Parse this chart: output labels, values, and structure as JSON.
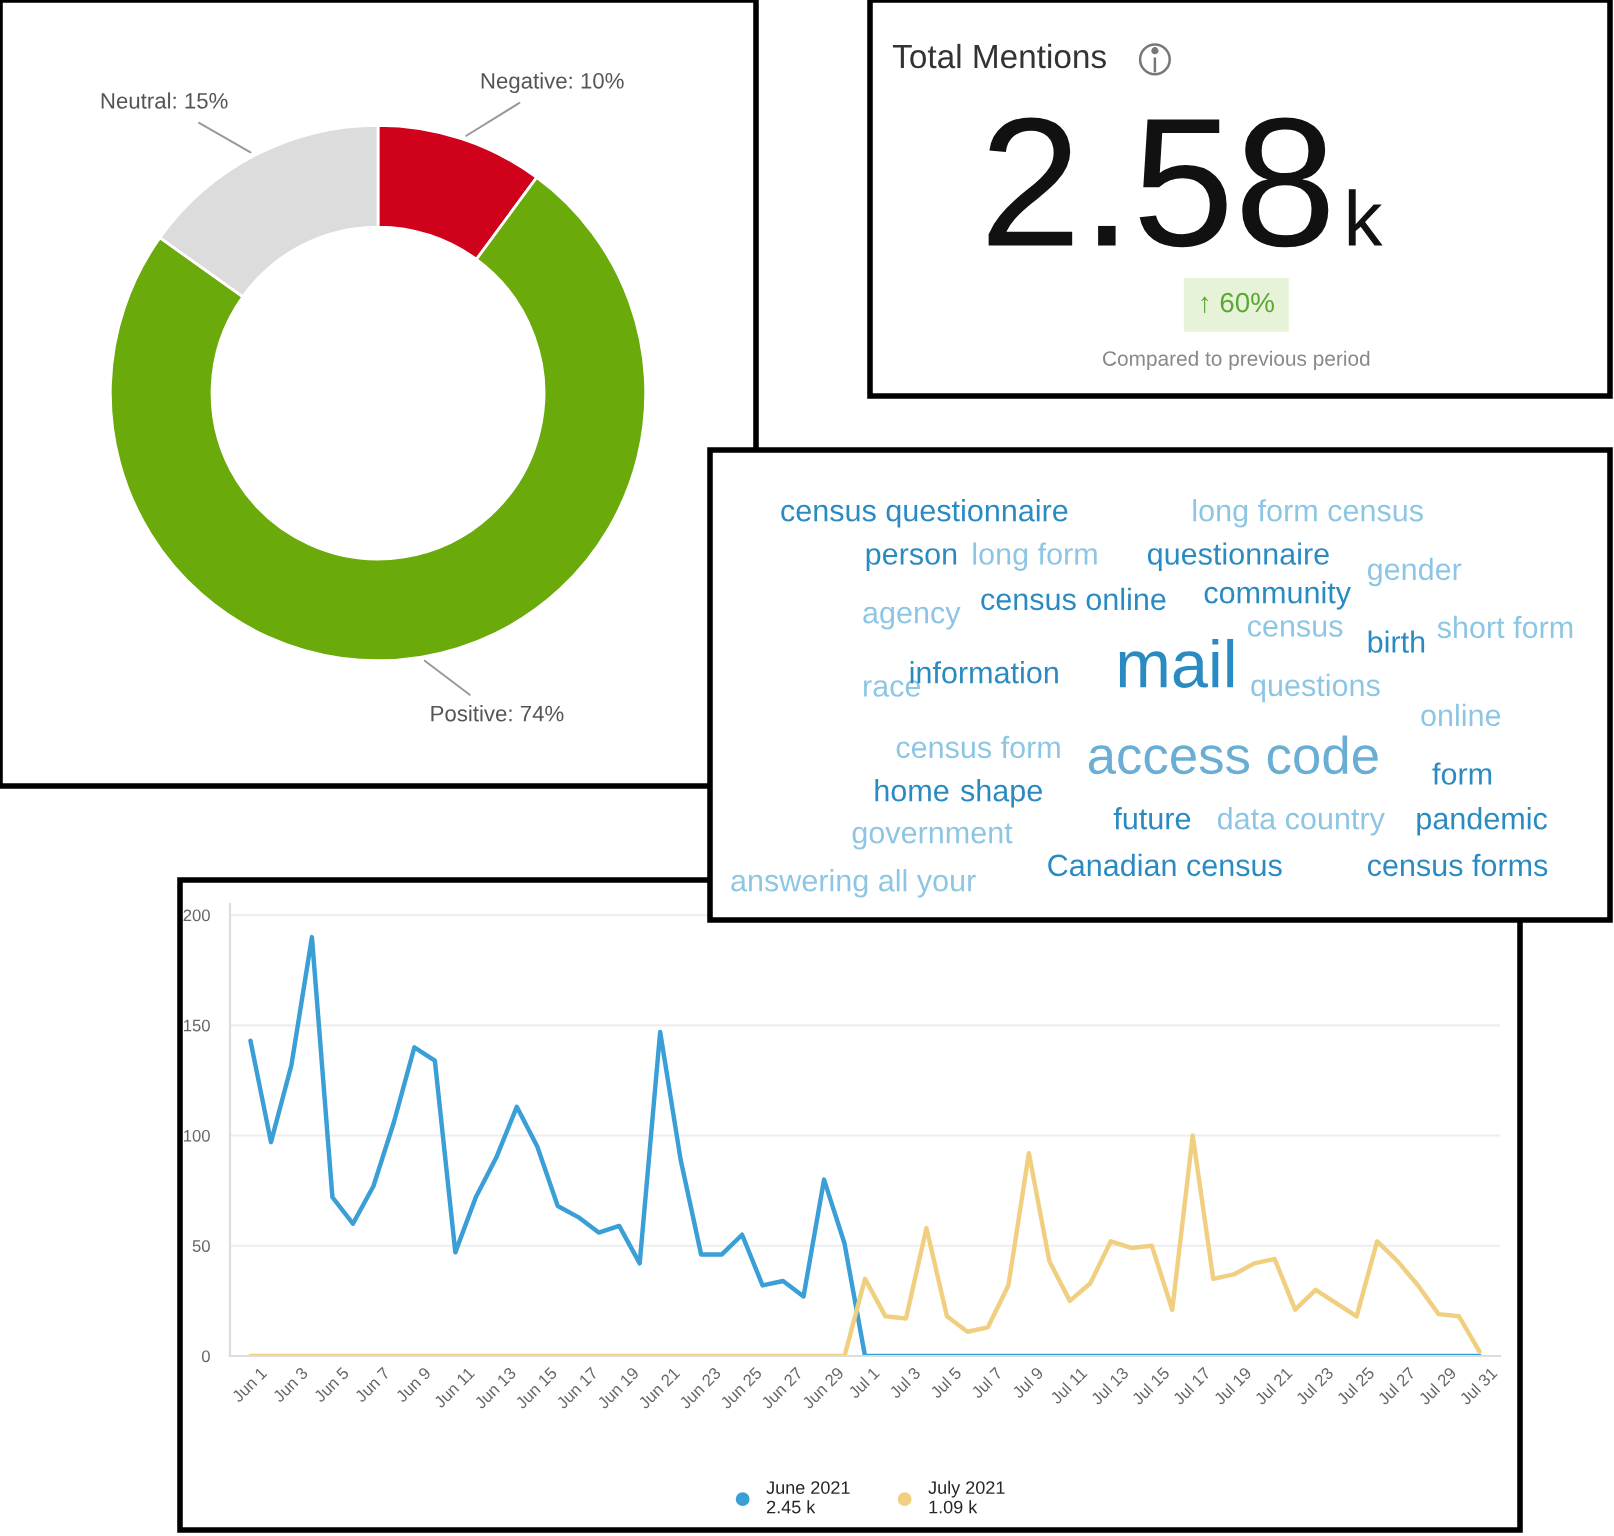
{
  "chart_data": [
    {
      "type": "donut",
      "categories": [
        "Negative",
        "Positive",
        "Neutral"
      ],
      "values": [
        10,
        74,
        15
      ],
      "value_labels": [
        "10%",
        "74%",
        "15%"
      ],
      "colors": [
        "#d0021b",
        "#6aaa0a",
        "#dcdcdc"
      ]
    },
    {
      "type": "other",
      "title": "Total Mentions",
      "annotations": [
        "2.58",
        "k",
        "↑ 60%",
        "Compared to previous period"
      ]
    },
    {
      "type": "other",
      "annotations": [
        "census questionnaire",
        "long form census",
        "person",
        "long form",
        "questionnaire",
        "gender",
        "census online",
        "community",
        "agency",
        "short form",
        "census",
        "birth",
        "race",
        "information",
        "mail",
        "questions",
        "online",
        "census form",
        "access code",
        "home",
        "shape",
        "form",
        "future",
        "data",
        "country",
        "pandemic",
        "government",
        "answering all your",
        "Canadian census",
        "census forms"
      ]
    },
    {
      "type": "line",
      "categories": [
        "Jun 1",
        null,
        "Jun 3",
        null,
        "Jun 5",
        null,
        "Jun 7",
        null,
        "Jun 9",
        null,
        "Jun 11",
        null,
        "Jun 13",
        null,
        "Jun 15",
        null,
        "Jun 17",
        null,
        "Jun 19",
        null,
        "Jun 21",
        null,
        "Jun 23",
        null,
        "Jun 25",
        null,
        "Jun 27",
        null,
        "Jun 29",
        null,
        "Jul 1",
        null,
        "Jul 3",
        null,
        "Jul 5",
        null,
        "Jul 7",
        null,
        "Jul 9",
        null,
        "Jul 11",
        null,
        "Jul 13",
        null,
        "Jul 15",
        null,
        "Jul 17",
        null,
        "Jul 19",
        null,
        "Jul 21",
        null,
        "Jul 23",
        null,
        "Jul 25",
        null,
        "Jul 27",
        null,
        "Jul 29",
        null,
        "Jul 31"
      ],
      "series": [
        {
          "name": "June 2021",
          "color": "#3a9fd6",
          "values": [
            143,
            97,
            132,
            190,
            72,
            60,
            77,
            106,
            140,
            134,
            47,
            72,
            90,
            113,
            95,
            68,
            63,
            56,
            59,
            42,
            147,
            89,
            46,
            46,
            55,
            32,
            34,
            27,
            80,
            51,
            0,
            0,
            0,
            0,
            0,
            0,
            0,
            0,
            0,
            0,
            0,
            0,
            0,
            0,
            0,
            0,
            0,
            0,
            0,
            0,
            0,
            0,
            0,
            0,
            0,
            0,
            0,
            0,
            0,
            0,
            0
          ]
        },
        {
          "name": "July 2021",
          "color": "#f0d080",
          "values": [
            0,
            0,
            0,
            0,
            0,
            0,
            0,
            0,
            0,
            0,
            0,
            0,
            0,
            0,
            0,
            0,
            0,
            0,
            0,
            0,
            0,
            0,
            0,
            0,
            0,
            0,
            0,
            0,
            0,
            0,
            35,
            18,
            17,
            58,
            18,
            11,
            13,
            32,
            92,
            43,
            25,
            33,
            52,
            49,
            50,
            21,
            100,
            35,
            37,
            42,
            44,
            21,
            30,
            24,
            18,
            52,
            43,
            32,
            19,
            18,
            2
          ]
        }
      ],
      "ylim": [
        0,
        205
      ],
      "yticks": [
        0,
        50,
        100,
        150,
        200
      ],
      "grid": "y",
      "legend": "bottom",
      "annotations": [
        "2.45 k",
        "1.09 k"
      ]
    }
  ]
}
